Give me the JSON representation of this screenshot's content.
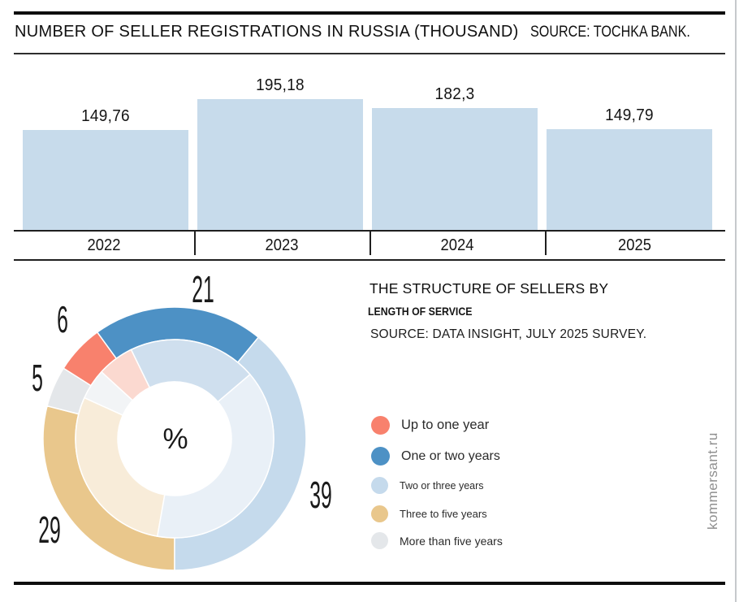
{
  "page": {
    "watermark": "kommersant.ru"
  },
  "header": {
    "title": "NUMBER OF SELLER REGISTRATIONS IN RUSSIA (THOUSAND)",
    "source": "SOURCE: TOCHKA BANK."
  },
  "donut_section": {
    "title_line1": "THE STRUCTURE OF SELLERS BY",
    "title_line2": "LENGTH OF SERVICE",
    "source": "SOURCE: DATA INSIGHT, JULY 2025 SURVEY.",
    "center_label": "%"
  },
  "chart_data": [
    {
      "type": "bar",
      "title": "NUMBER OF SELLER REGISTRATIONS IN RUSSIA (THOUSAND)",
      "source": "SOURCE: TOCHKA BANK.",
      "categories": [
        "2022",
        "2023",
        "2024",
        "2025"
      ],
      "values": [
        149.76,
        195.18,
        182.3,
        149.79
      ],
      "value_labels": [
        "149,76",
        "195,18",
        "182,3",
        "149,79"
      ],
      "bar_color": "#c7dbeb",
      "xlabel": "",
      "ylabel": "",
      "ylim": [
        0,
        195.18
      ],
      "grid": false,
      "legend_position": "none"
    },
    {
      "type": "pie",
      "subtype": "donut",
      "title": "THE STRUCTURE OF SELLERS BY LENGTH OF SERVICE",
      "source": "SOURCE: DATA INSIGHT, JULY 2025 SURVEY.",
      "center_label": "%",
      "slices": [
        {
          "label": "Up to one year",
          "value": 6,
          "color": "#f8816d",
          "inner_color": "#fbd9d0"
        },
        {
          "label": "One or two years",
          "value": 21,
          "color": "#4d91c5",
          "inner_color": "#cfdfee"
        },
        {
          "label": "Two or three years",
          "value": 39,
          "color": "#c5daec",
          "inner_color": "#e9f0f7"
        },
        {
          "label": "Three to five years",
          "value": 29,
          "color": "#e9c78c",
          "inner_color": "#f8ecd9"
        },
        {
          "label": "More than five years",
          "value": 5,
          "color": "#e4e7ea",
          "inner_color": "#f2f4f6"
        }
      ],
      "layout": {
        "start_angle": 180,
        "draw_order": [
          3,
          4,
          0,
          1,
          2
        ],
        "inner_ring_rotation_deg": 10,
        "legend_position": "right"
      }
    }
  ]
}
